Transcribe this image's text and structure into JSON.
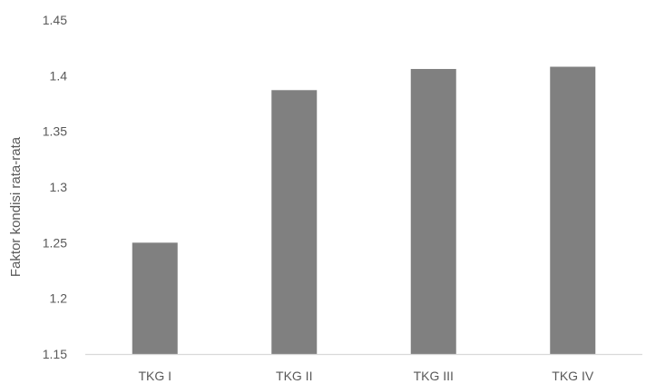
{
  "chart_data": {
    "type": "bar",
    "title": "",
    "xlabel": "",
    "ylabel": "Faktor kondisi rata-rata",
    "categories": [
      "TKG I",
      "TKG II",
      "TKG III",
      "TKG IV"
    ],
    "values": [
      1.25,
      1.387,
      1.406,
      1.408
    ],
    "ylim": [
      1.15,
      1.45
    ],
    "yticks": [
      "1.15",
      "1.2",
      "1.25",
      "1.3",
      "1.35",
      "1.4",
      "1.45"
    ],
    "grid": false,
    "legend": "none",
    "bar_color": "#808080",
    "axis_color": "#d9d9d9"
  }
}
